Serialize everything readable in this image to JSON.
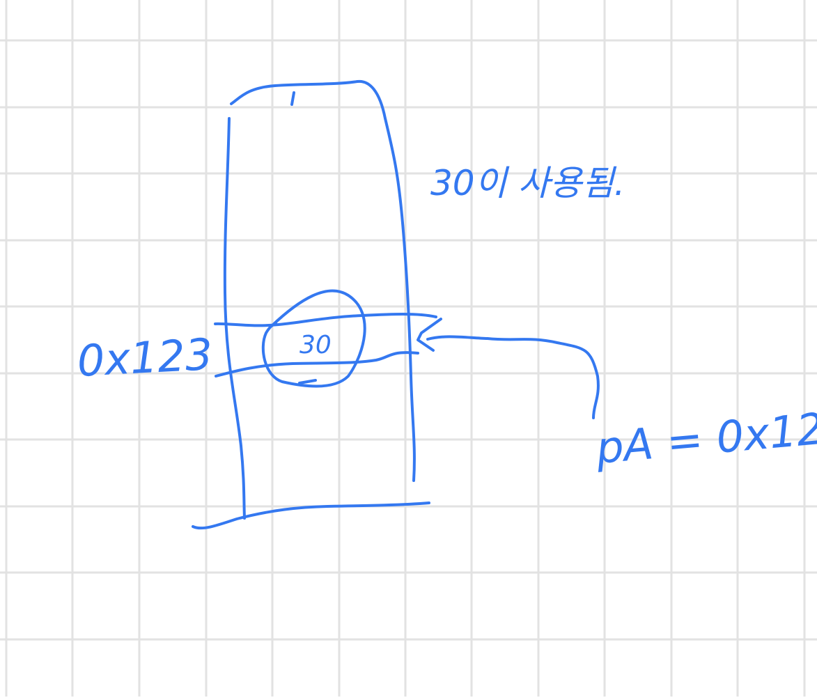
{
  "colors": {
    "paper": "#ffffff",
    "grid": "#e2e2e2",
    "ink": "#3478f0"
  },
  "diagram": {
    "memory_block": {
      "name": "memory-stack-column"
    },
    "address_label": "0x123",
    "cell_value": "30",
    "note": "30이 사용됨.",
    "pointer_label": "pA = 0x12"
  }
}
